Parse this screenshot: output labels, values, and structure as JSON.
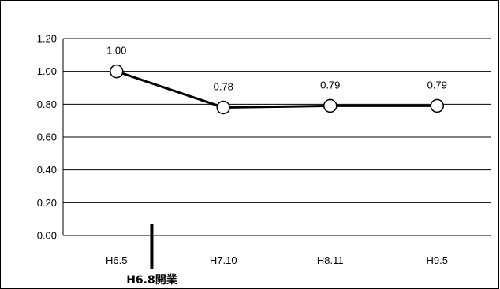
{
  "chart_data": {
    "type": "line",
    "categories": [
      "H6.5",
      "H7.10",
      "H8.11",
      "H9.5"
    ],
    "series": [
      {
        "values": [
          1.0,
          0.78,
          0.79,
          0.79
        ]
      }
    ],
    "data_labels": [
      "1.00",
      "0.78",
      "0.79",
      "0.79"
    ],
    "y_ticks": [
      "0.00",
      "0.20",
      "0.40",
      "0.60",
      "0.80",
      "1.00",
      "1.20"
    ],
    "ylim": [
      0,
      1.2
    ],
    "grid": true,
    "legend": false,
    "title": "",
    "xlabel": "",
    "ylabel": "",
    "annotation": {
      "text": "H6.8開業",
      "position_between_categories": [
        0,
        1
      ],
      "fraction": 0.33
    },
    "colors": {
      "line": "#000000",
      "marker_fill": "#ffffff",
      "grid": "#000000"
    }
  }
}
